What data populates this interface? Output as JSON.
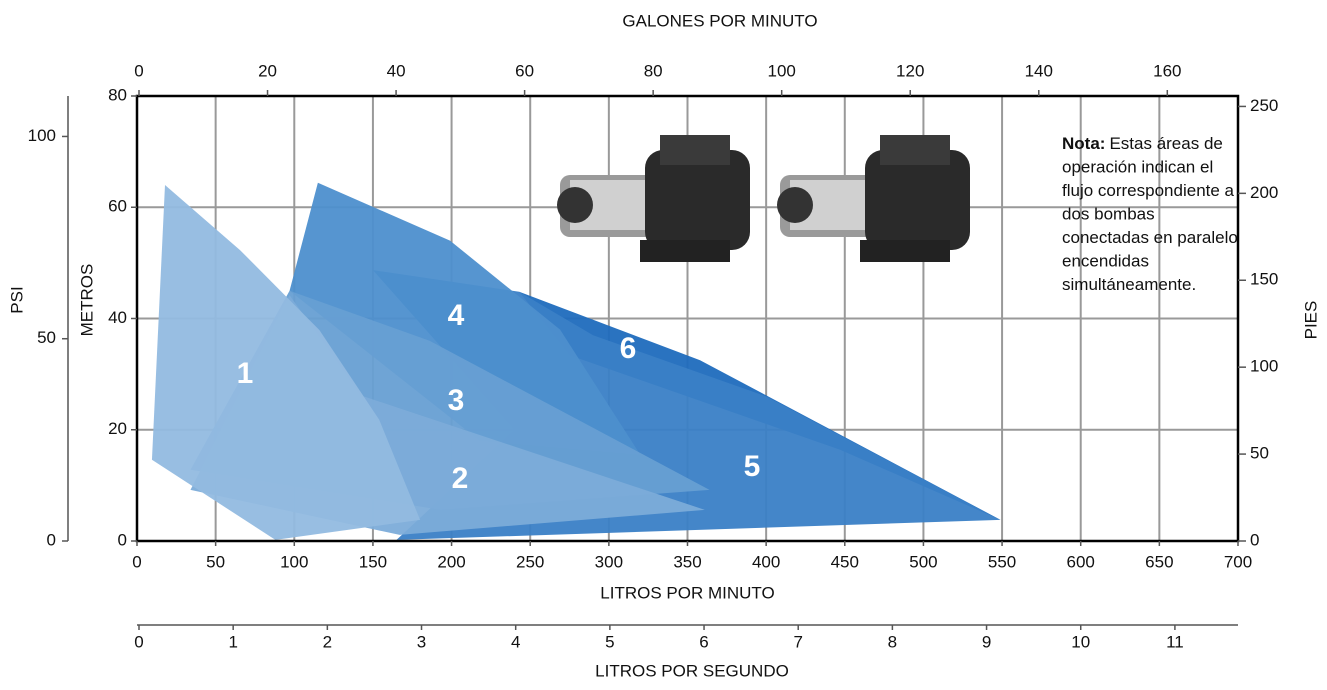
{
  "chart_data": {
    "type": "area",
    "xlabel": "LITROS POR MINUTO",
    "xlim": [
      0,
      700
    ],
    "xticks": [
      0,
      50,
      100,
      150,
      200,
      250,
      300,
      350,
      400,
      450,
      500,
      550,
      600,
      650,
      700
    ],
    "x2label": "GALONES POR MINUTO",
    "x2lim": [
      0,
      171
    ],
    "x2ticks": [
      0,
      20,
      40,
      60,
      80,
      100,
      120,
      140,
      160
    ],
    "x3label": "LITROS POR SEGUNDO",
    "x3lim": [
      0,
      11.67
    ],
    "x3ticks": [
      0,
      1,
      2,
      3,
      4,
      5,
      6,
      7,
      8,
      9,
      10,
      11
    ],
    "ylabel": "METROS",
    "ylim": [
      0,
      80
    ],
    "yticks": [
      0,
      20,
      40,
      60,
      80
    ],
    "y2label": "PIES",
    "y2lim": [
      0,
      256
    ],
    "y2ticks": [
      0,
      50,
      100,
      150,
      200,
      250
    ],
    "y3label": "PSI",
    "y3lim": [
      0,
      110
    ],
    "y3ticks": [
      0,
      50,
      100
    ],
    "grid": true,
    "note_label": "Nota:",
    "note_lines": [
      "Estas áreas de",
      "operación indican el",
      "flujo correspondiente a",
      "dos bombas",
      "conectadas en paralelo",
      "encendidas",
      "simultáneamente."
    ],
    "series": [
      {
        "name": "6",
        "color": "#1f6cbd",
        "x": [
          243,
          358,
          549,
          447,
          275
        ],
        "y": [
          44.8,
          32.5,
          3.8,
          16.4,
          33.4
        ]
      },
      {
        "name": "5",
        "color": "#3a80c6",
        "x": [
          150,
          243,
          290,
          400,
          549,
          165,
          240
        ],
        "y": [
          48.7,
          44.8,
          37,
          26,
          3.8,
          0.2,
          20
        ]
      },
      {
        "name": "4",
        "color": "#4d8fcd",
        "x": [
          115,
          199,
          269,
          320,
          218,
          97
        ],
        "y": [
          64.4,
          54,
          38,
          15.5,
          18,
          45
        ]
      },
      {
        "name": "3",
        "color": "#679fd3",
        "x": [
          97,
          186,
          364,
          193,
          34
        ],
        "y": [
          45,
          36,
          9.2,
          5.6,
          12.8
        ]
      },
      {
        "name": "2",
        "color": "#7cacd9",
        "x": [
          97,
          142,
          361,
          167,
          34
        ],
        "y": [
          44.2,
          26.2,
          5.6,
          1.1,
          9.2
        ]
      },
      {
        "name": "1",
        "color": "#92bbe0",
        "x": [
          17.8,
          65.5,
          116,
          154,
          180,
          88,
          9.5
        ],
        "y": [
          64,
          52.3,
          37.9,
          21.8,
          3.8,
          0.2,
          14.6
        ]
      }
    ]
  }
}
